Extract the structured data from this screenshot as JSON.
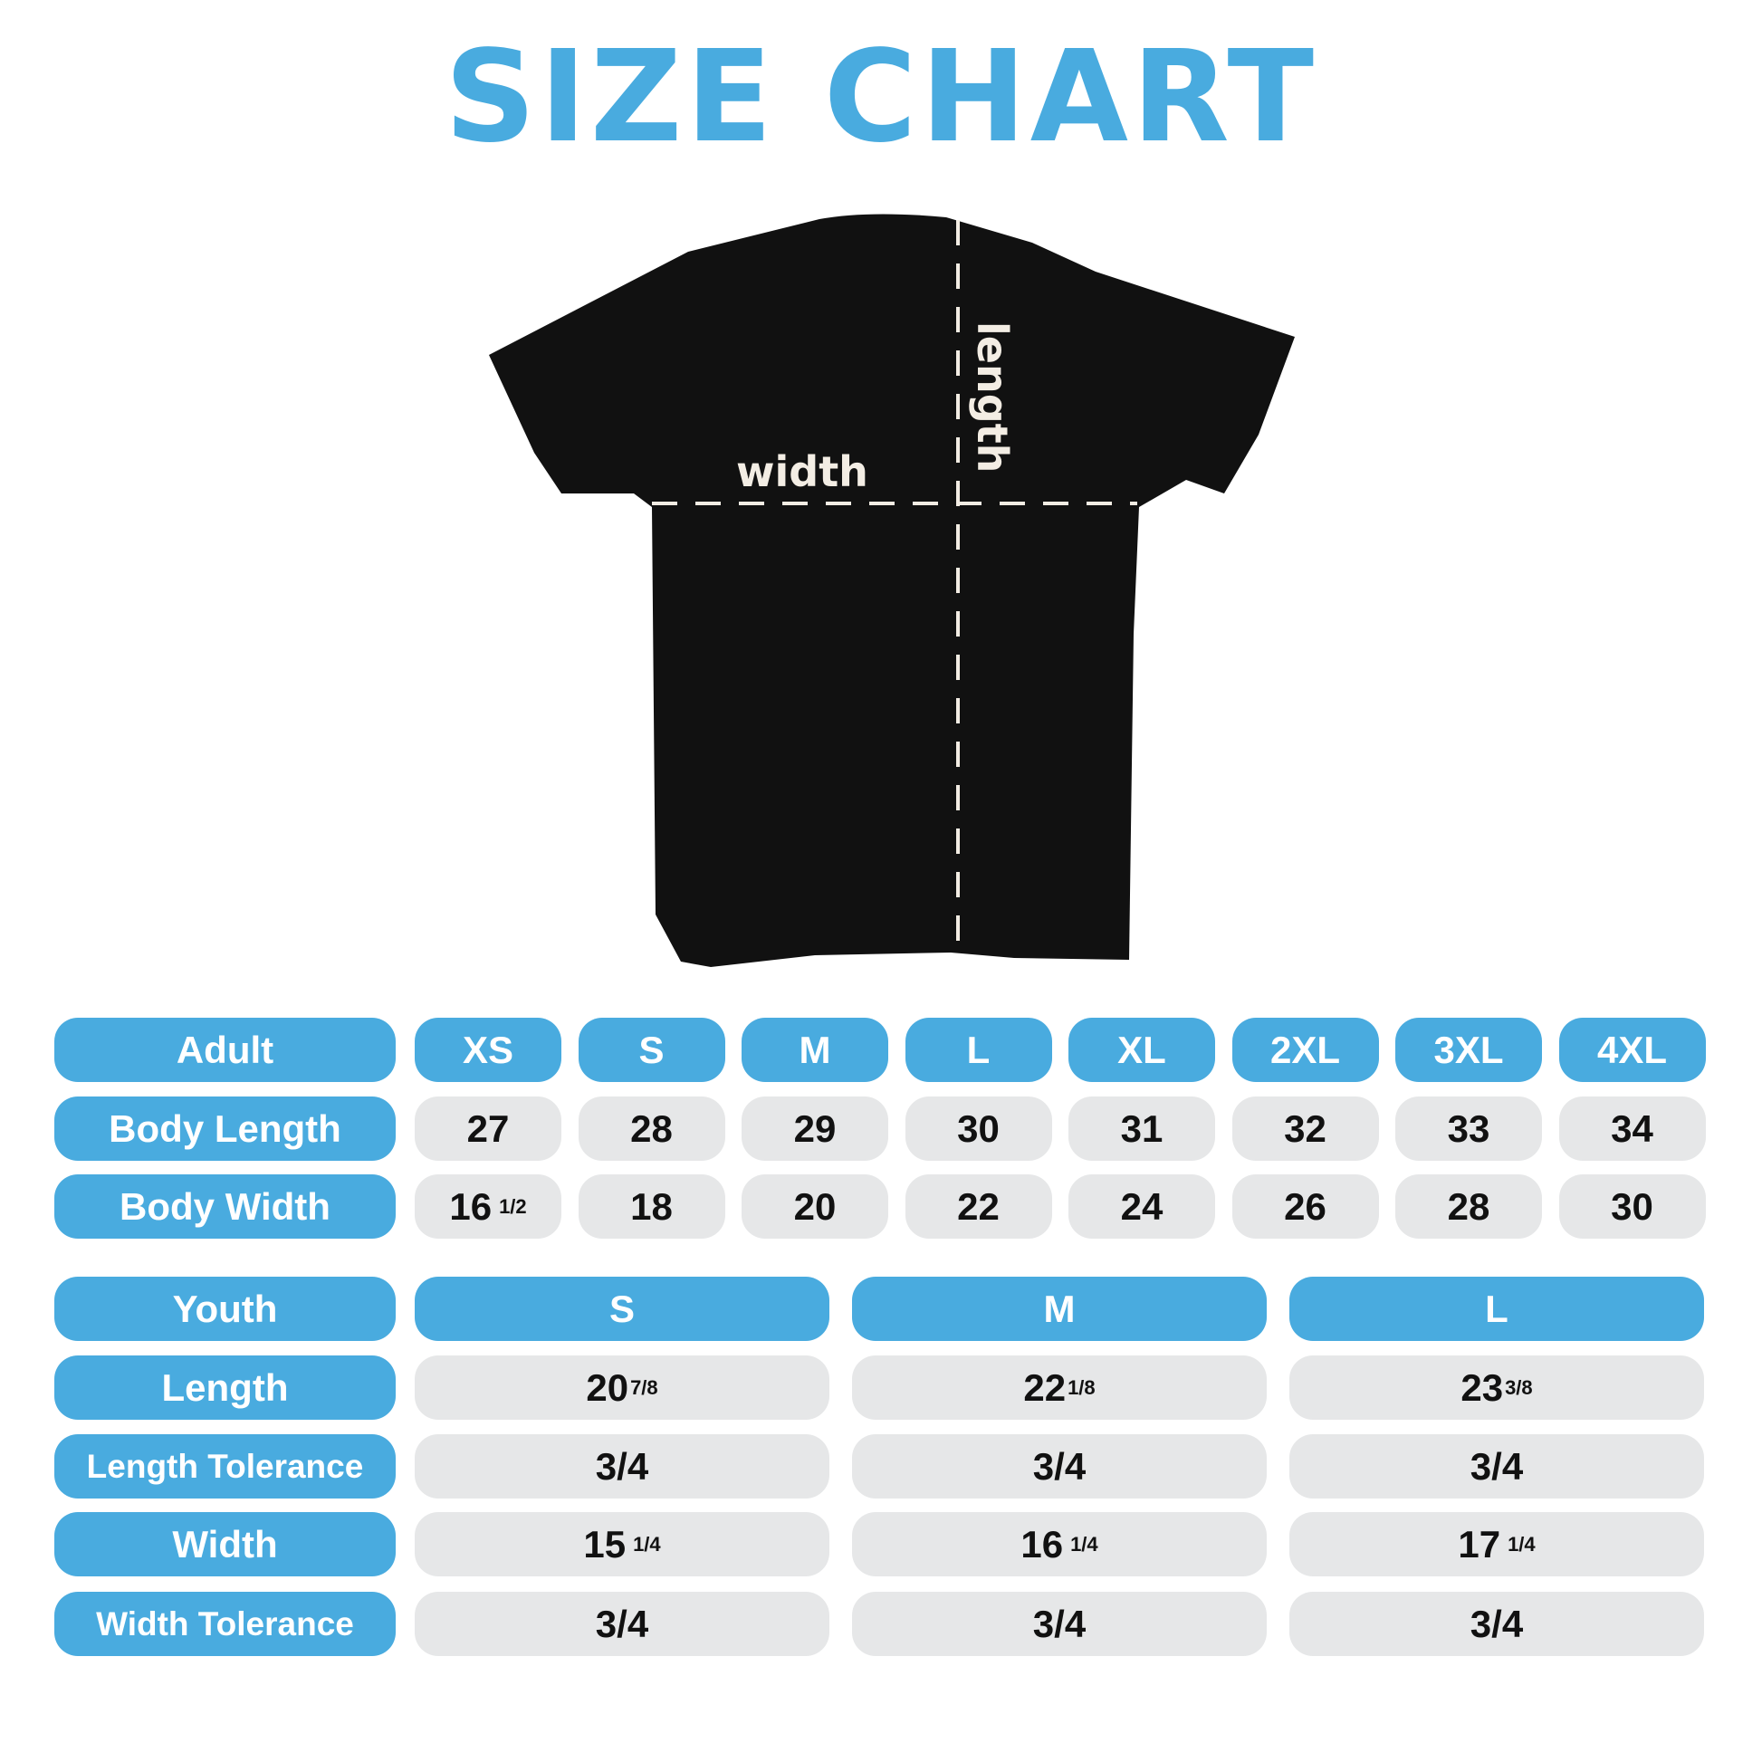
{
  "title": "SIZE CHART",
  "diagram": {
    "width_label": "width",
    "length_label": "length",
    "shirt_color": "#111111",
    "line_color": "#f3ede4"
  },
  "colors": {
    "accent": "#49abdf",
    "cell": "#e6e7e8"
  },
  "adult": {
    "header": "Adult",
    "sizes": [
      "XS",
      "S",
      "M",
      "L",
      "XL",
      "2XL",
      "3XL",
      "4XL"
    ],
    "rows": [
      {
        "label": "Body Length",
        "values": [
          {
            "w": "27",
            "f": ""
          },
          {
            "w": "28",
            "f": ""
          },
          {
            "w": "29",
            "f": ""
          },
          {
            "w": "30",
            "f": ""
          },
          {
            "w": "31",
            "f": ""
          },
          {
            "w": "32",
            "f": ""
          },
          {
            "w": "33",
            "f": ""
          },
          {
            "w": "34",
            "f": ""
          }
        ]
      },
      {
        "label": "Body Width",
        "values": [
          {
            "w": "16",
            "f": "1/2"
          },
          {
            "w": "18",
            "f": ""
          },
          {
            "w": "20",
            "f": ""
          },
          {
            "w": "22",
            "f": ""
          },
          {
            "w": "24",
            "f": ""
          },
          {
            "w": "26",
            "f": ""
          },
          {
            "w": "28",
            "f": ""
          },
          {
            "w": "30",
            "f": ""
          }
        ]
      }
    ]
  },
  "youth": {
    "header": "Youth",
    "sizes": [
      "S",
      "M",
      "L"
    ],
    "rows": [
      {
        "label": "Length",
        "values": [
          {
            "w": "20",
            "f": "7/8"
          },
          {
            "w": "22",
            "f": "1/8"
          },
          {
            "w": "23",
            "f": "3/8"
          }
        ]
      },
      {
        "label": "Length Tolerance",
        "values": [
          {
            "w": "3/4",
            "f": ""
          },
          {
            "w": "3/4",
            "f": ""
          },
          {
            "w": "3/4",
            "f": ""
          }
        ]
      },
      {
        "label": "Width",
        "values": [
          {
            "w": "15",
            "f": "1/4"
          },
          {
            "w": "16",
            "f": "1/4"
          },
          {
            "w": "17",
            "f": "1/4"
          }
        ]
      },
      {
        "label": "Width Tolerance",
        "values": [
          {
            "w": "3/4",
            "f": ""
          },
          {
            "w": "3/4",
            "f": ""
          },
          {
            "w": "3/4",
            "f": ""
          }
        ]
      }
    ]
  }
}
